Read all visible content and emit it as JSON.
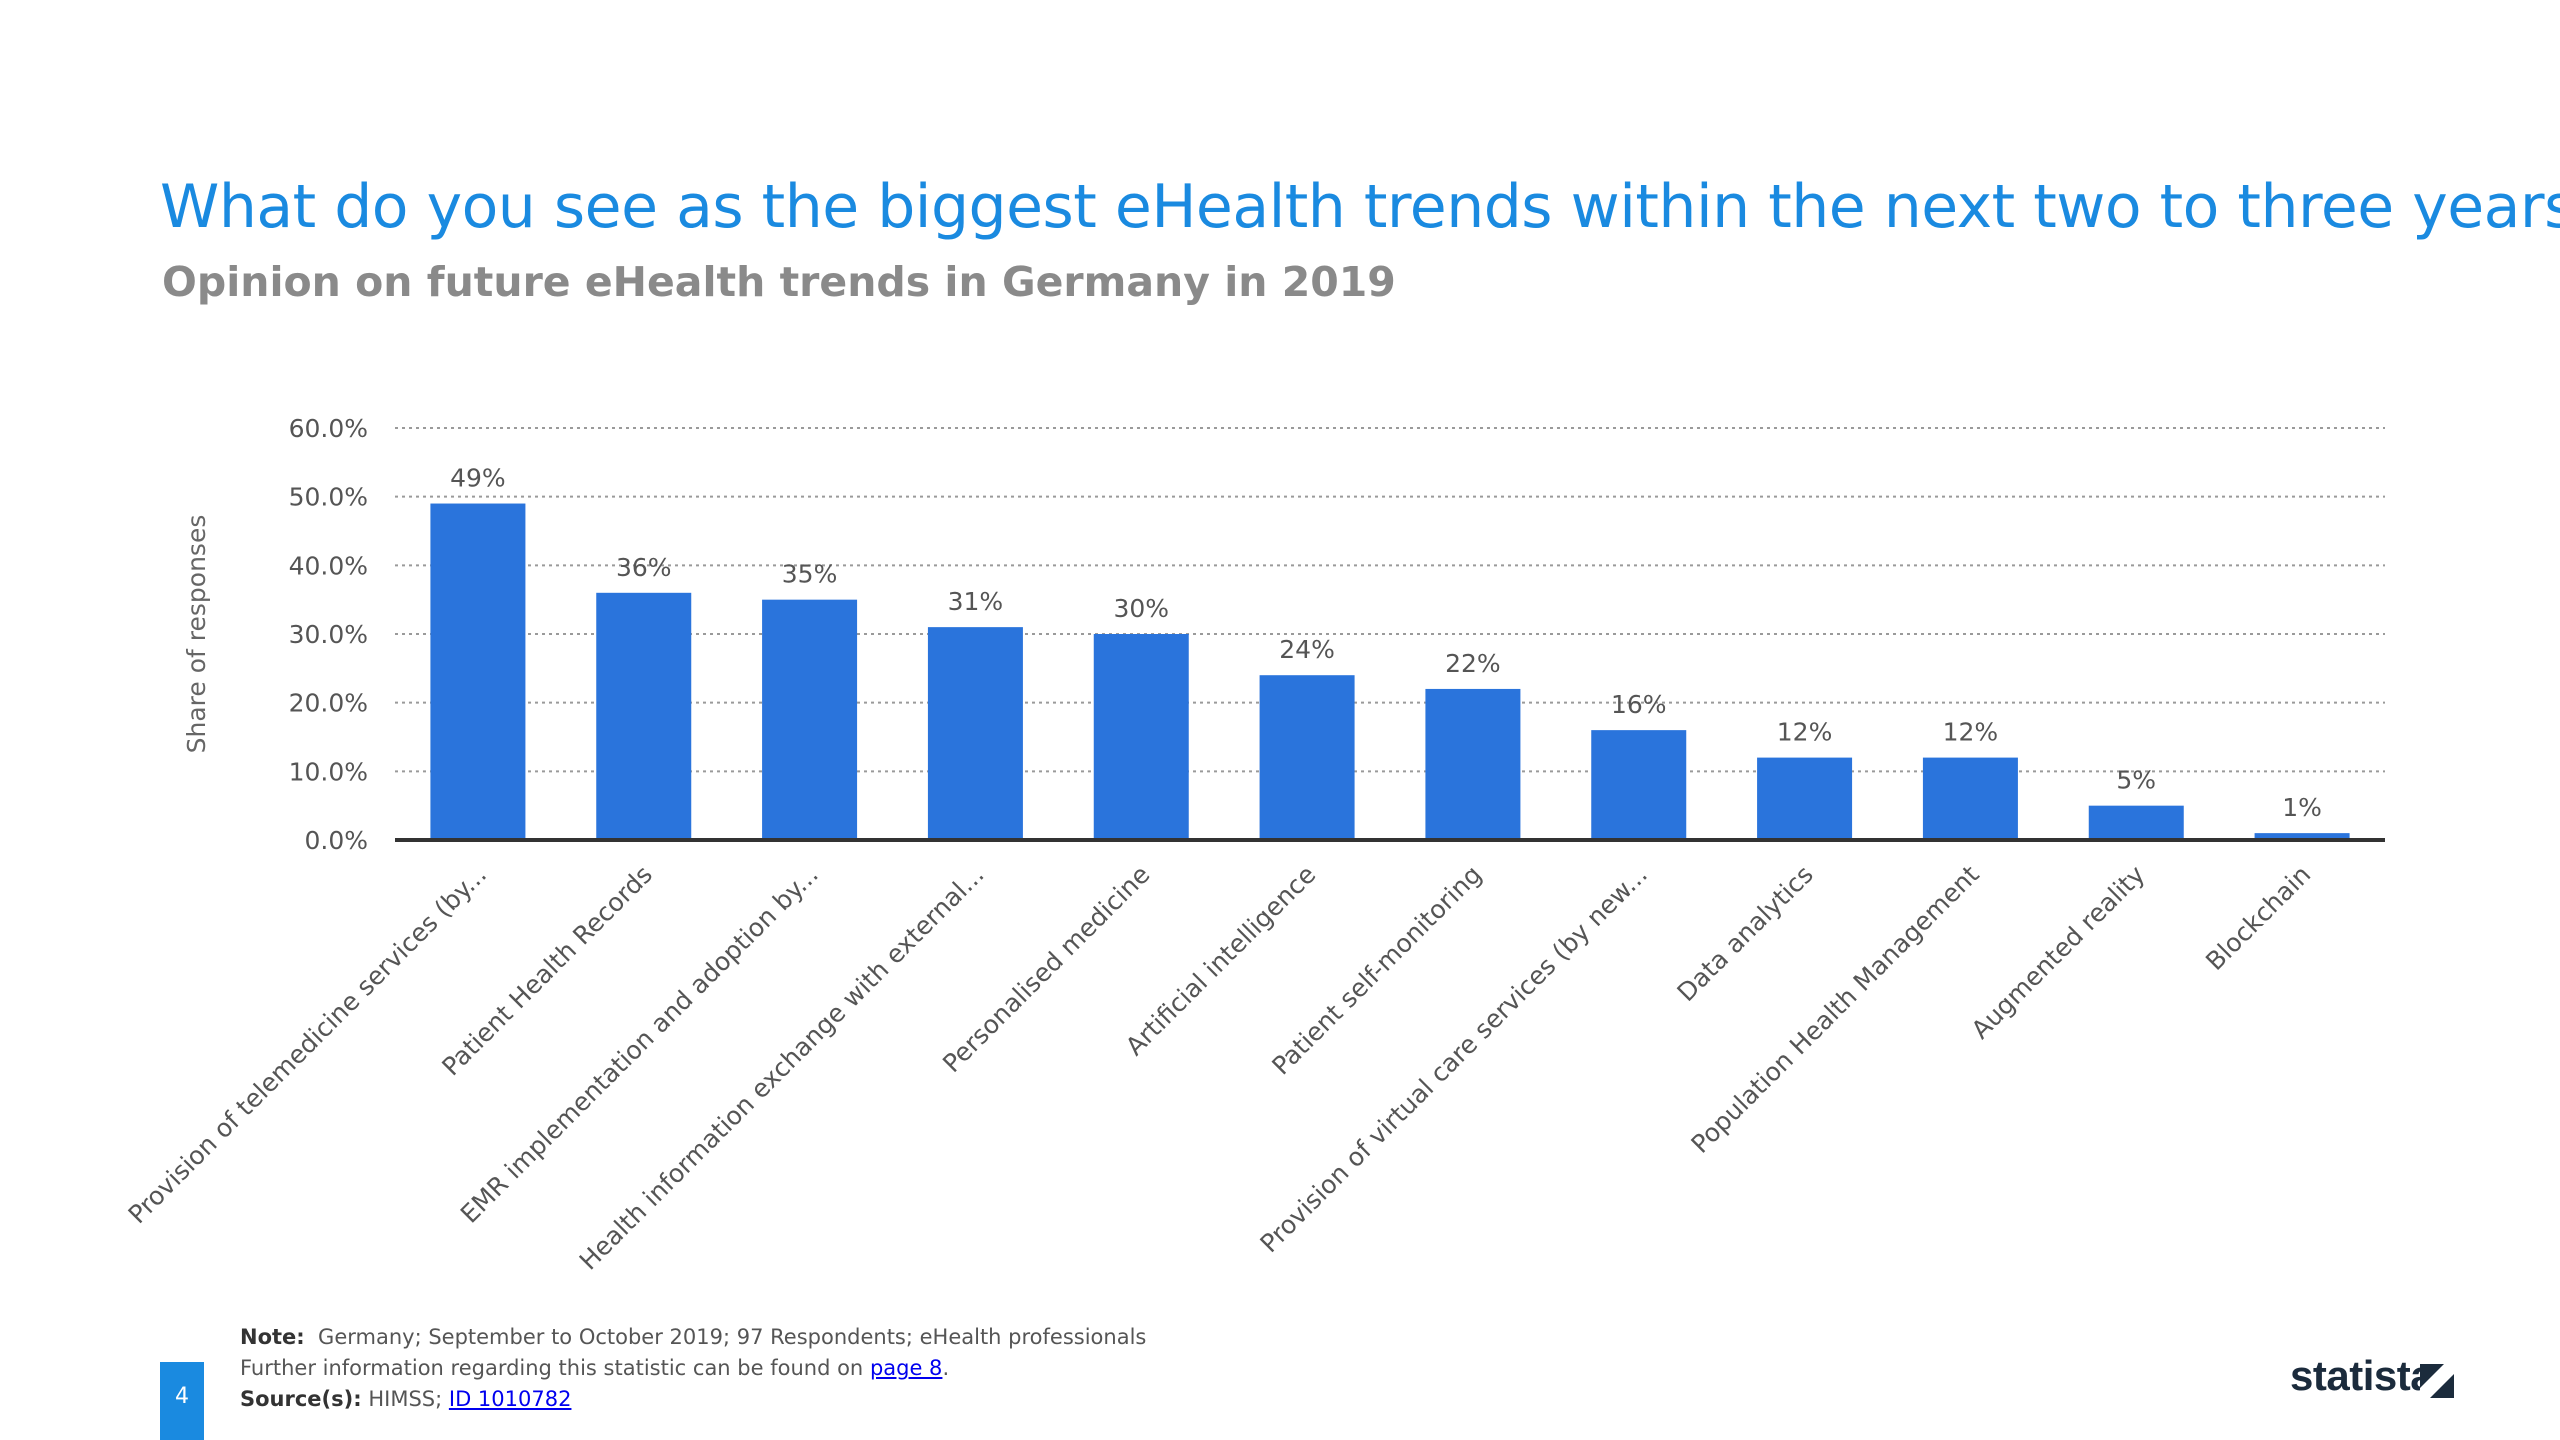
{
  "header": {
    "title": "What do you see as the biggest eHealth trends within the next two to three years?*",
    "subtitle": "Opinion on future eHealth trends in Germany in 2019"
  },
  "chart_data": {
    "type": "bar",
    "title": "What do you see as the biggest eHealth trends within the next two to three years?*",
    "subtitle": "Opinion on future eHealth trends in Germany in 2019",
    "ylabel": "Share of responses",
    "xlabel": "",
    "ylim": [
      0,
      60
    ],
    "yticks": [
      "0.0%",
      "10.0%",
      "20.0%",
      "30.0%",
      "40.0%",
      "50.0%",
      "60.0%"
    ],
    "grid": true,
    "bar_color": "#2a74dc",
    "categories": [
      "Provision of telemedicine services (by...",
      "Patient Health Records",
      "EMR implementation and adoption by...",
      "Health information exchange with external...",
      "Personalised medicine",
      "Artificial intelligence",
      "Patient self-monitoring",
      "Provision of virtual care services (by new...",
      "Data analytics",
      "Population Health Management",
      "Augmented reality",
      "Blockchain"
    ],
    "values": [
      49,
      36,
      35,
      31,
      30,
      24,
      22,
      16,
      12,
      12,
      5,
      1
    ],
    "data_labels": [
      "49%",
      "36%",
      "35%",
      "31%",
      "30%",
      "24%",
      "22%",
      "16%",
      "12%",
      "12%",
      "5%",
      "1%"
    ]
  },
  "footer": {
    "note_label": "Note:",
    "note_text": "Germany; September to October 2019; 97 Respondents; eHealth professionals",
    "info_text": "Further information regarding this statistic can be found on",
    "info_link": "page 8",
    "info_end": ".",
    "source_label": "Source(s):",
    "source_text": "HIMSS;",
    "source_link": "ID 1010782"
  },
  "page_number": "4",
  "logo_text": "statista",
  "colors": {
    "title": "#1a8ae0",
    "bar": "#2a74dc",
    "page_badge": "#1a8ae0"
  }
}
